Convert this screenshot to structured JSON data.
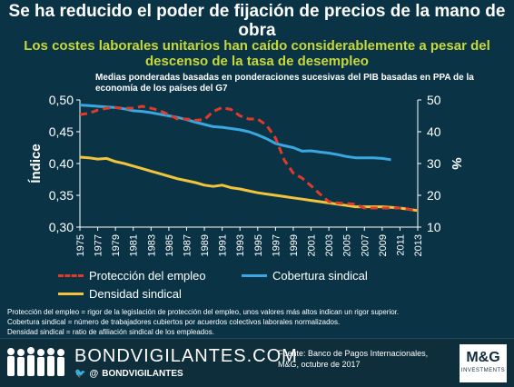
{
  "header": {
    "title": "Se ha reducido el poder de fijación de precios de la mano de obra",
    "subtitle": "Los costes laborales unitarios han caído considerablemente a pesar del descenso de la tasa de desempleo",
    "note": "Medias ponderadas basadas en ponderaciones sucesivas del PIB basadas en PPA de la economía de los países del G7"
  },
  "chart_data": {
    "type": "line",
    "x": [
      1975,
      1976,
      1977,
      1978,
      1979,
      1980,
      1981,
      1982,
      1983,
      1984,
      1985,
      1986,
      1987,
      1988,
      1989,
      1990,
      1991,
      1992,
      1993,
      1994,
      1995,
      1996,
      1997,
      1998,
      1999,
      2000,
      2001,
      2002,
      2003,
      2004,
      2005,
      2006,
      2007,
      2008,
      2009,
      2010,
      2011,
      2012,
      2013
    ],
    "x_tick_labels": [
      "1975",
      "1977",
      "1979",
      "1981",
      "1983",
      "1985",
      "1987",
      "1989",
      "1991",
      "1993",
      "1995",
      "1997",
      "1999",
      "2001",
      "2003",
      "2005",
      "2007",
      "2009",
      "2011",
      "2013"
    ],
    "ylabel_left": "Índice",
    "ylabel_right": "%",
    "ylim_left": [
      0.3,
      0.5
    ],
    "ylim_right": [
      10,
      50
    ],
    "yticks_left": [
      "0,30",
      "0,35",
      "0,40",
      "0,45",
      "0,50"
    ],
    "yticks_right": [
      "10",
      "20",
      "30",
      "40",
      "50"
    ],
    "series": [
      {
        "name": "Protección del empleo",
        "axis": "left",
        "color": "#e03a2a",
        "style": "dashed",
        "values": [
          0.477,
          0.479,
          0.484,
          0.487,
          0.488,
          0.487,
          0.487,
          0.49,
          0.487,
          0.483,
          0.477,
          0.47,
          0.47,
          0.468,
          0.469,
          0.482,
          0.488,
          0.485,
          0.475,
          0.47,
          0.47,
          0.46,
          0.44,
          0.405,
          0.385,
          0.377,
          0.365,
          0.352,
          0.34,
          0.338,
          0.337,
          0.336,
          0.33,
          0.33,
          0.33,
          0.33,
          0.33,
          0.328,
          0.326
        ]
      },
      {
        "name": "Cobertura sindical",
        "axis": "right",
        "color": "#39a7e0",
        "style": "solid",
        "values": [
          48.4,
          48.2,
          48.0,
          47.8,
          47.6,
          47.2,
          46.6,
          46.4,
          46.0,
          45.5,
          45.0,
          44.5,
          43.8,
          43.0,
          42.3,
          41.6,
          41.4,
          41.0,
          40.6,
          40.0,
          39.0,
          37.8,
          36.3,
          35.6,
          35.0,
          33.9,
          34.0,
          33.6,
          33.3,
          32.8,
          32.2,
          31.8,
          31.8,
          31.8,
          31.6,
          31.2,
          null,
          null,
          null
        ]
      },
      {
        "name": "Densidad sindical",
        "axis": "left",
        "color": "#f2c43b",
        "style": "solid",
        "values": [
          0.41,
          0.409,
          0.407,
          0.408,
          0.403,
          0.4,
          0.396,
          0.392,
          0.388,
          0.384,
          0.38,
          0.376,
          0.373,
          0.37,
          0.366,
          0.364,
          0.366,
          0.362,
          0.36,
          0.357,
          0.354,
          0.352,
          0.35,
          0.348,
          0.346,
          0.344,
          0.342,
          0.34,
          0.338,
          0.336,
          0.334,
          0.332,
          0.332,
          0.332,
          0.332,
          0.331,
          0.33,
          0.328,
          0.326
        ]
      }
    ],
    "legend": [
      "Protección del empleo",
      "Cobertura sindical",
      "Densidad sindical"
    ],
    "legend_position": "bottom",
    "grid": false
  },
  "footnotes": [
    "Protección del empleo = rigor de la legislación de protección del empleo, unos valores más altos indican un rigor superior.",
    "Cobertura sindical = número de trabajadores cubiertos por acuerdos colectivos laborales normalizados.",
    "Densidad sindical = ratio de afiliación sindical de los empleados."
  ],
  "footer": {
    "brand": "BONDVIGILANTES.COM",
    "handle": "BONDVIGILANTES",
    "source_lines": [
      "Fuente: Banco de Pagos Internacionales,",
      "M&G, octubre de 2017"
    ],
    "logo": "M&G",
    "logo_sub": "INVESTMENTS",
    "colors": {
      "background": "#0a3446",
      "footer": "#0e2e3c",
      "accent": "#c7d83a"
    }
  }
}
